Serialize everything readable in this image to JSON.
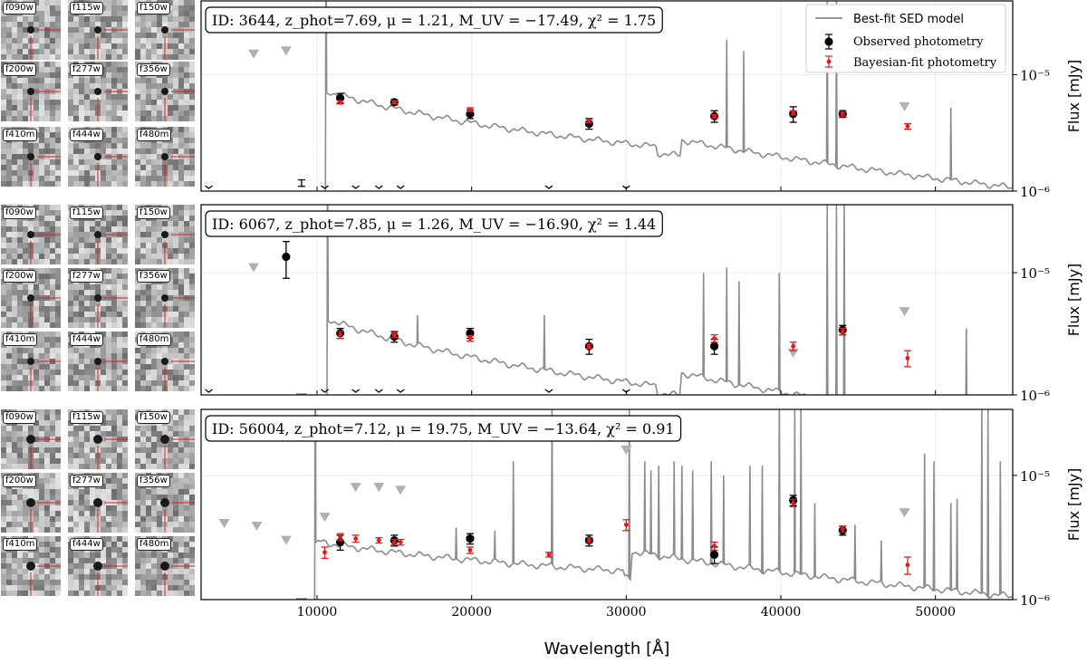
{
  "figure": {
    "xlabel": "Wavelength [Å]",
    "ylabel": "Flux [mJy]",
    "legend": {
      "placement": "top-right",
      "entries": [
        "Best-fit SED model",
        "Observed photometry",
        "Bayesian-fit photometry"
      ]
    },
    "filters": [
      "f090w",
      "f115w",
      "f150w",
      "f200w",
      "f277w",
      "f356w",
      "f410m",
      "f444w",
      "f480m"
    ],
    "colors": {
      "model": "#8c8c8c",
      "observed": "#000000",
      "bayesian": "#e41a1c",
      "upper_limit": "#b0b0b0"
    }
  },
  "chart_data": [
    {
      "type": "scatter",
      "title": "ID: 3644, z_phot=7.69, μ = 1.21, M_UV = −17.49, χ² = 1.75",
      "id": "3644",
      "z_phot": "7.69",
      "mu": "1.21",
      "M_UV": "−17.49",
      "chi2": "1.75",
      "xlabel": "",
      "ylabel": "Flux [mJy]",
      "xlim": [
        2500,
        55000
      ],
      "ylim": [
        1e-06,
        4.3e-05
      ],
      "yscale": "log",
      "xticks": [
        10000,
        20000,
        30000,
        40000,
        50000
      ],
      "yticks": [
        {
          "v": 1e-06,
          "label": "10⁻⁶"
        },
        {
          "v": 1e-05,
          "label": "10⁻⁵"
        }
      ],
      "break_wavelength": 10600,
      "continuum_level": 7e-06,
      "continuum_slope": -1.0,
      "red_rise": 1.2,
      "red_rise_start": 32000,
      "red_rise_end": 33500,
      "blue_spike": 4.5e-05,
      "emission_lines": [
        {
          "x": 36500,
          "y": 2e-05
        },
        {
          "x": 37600,
          "y": 1.6e-05
        },
        {
          "x": 43000,
          "y": 4.5e-05
        },
        {
          "x": 43600,
          "y": 4.5e-05
        },
        {
          "x": 51000,
          "y": 5.2e-06
        }
      ],
      "observed": [
        {
          "x": 11500,
          "y": 6.3e-06,
          "err": 6e-07
        },
        {
          "x": 15000,
          "y": 5.8e-06,
          "err": 3e-07
        },
        {
          "x": 19900,
          "y": 4.6e-06,
          "err": 4e-07
        },
        {
          "x": 27600,
          "y": 3.8e-06,
          "err": 4e-07
        },
        {
          "x": 35700,
          "y": 4.4e-06,
          "err": 5e-07
        },
        {
          "x": 40800,
          "y": 4.6e-06,
          "err": 7e-07
        },
        {
          "x": 44000,
          "y": 4.6e-06,
          "err": 3e-07
        }
      ],
      "bayesian": [
        {
          "x": 11500,
          "y": 5.8e-06,
          "err": 2e-07
        },
        {
          "x": 15000,
          "y": 5.8e-06,
          "err": 1.5e-07
        },
        {
          "x": 19900,
          "y": 5e-06,
          "err": 2e-07
        },
        {
          "x": 27600,
          "y": 4e-06,
          "err": 1.5e-07
        },
        {
          "x": 35700,
          "y": 4.4e-06,
          "err": 1.5e-07
        },
        {
          "x": 40800,
          "y": 4.7e-06,
          "err": 2e-07
        },
        {
          "x": 44000,
          "y": 4.6e-06,
          "err": 2e-07
        },
        {
          "x": 48200,
          "y": 3.6e-06,
          "err": 2e-07
        }
      ],
      "upper_limits": [
        {
          "x": 5900,
          "y": 1.5e-05
        },
        {
          "x": 8000,
          "y": 1.6e-05
        },
        {
          "x": 48000,
          "y": 5.3e-06
        }
      ],
      "nondetections": [
        3000,
        10500,
        12500,
        14000,
        15400,
        25000,
        30000
      ],
      "bottom_errorbars": [
        {
          "x": 9000,
          "y": 1.15e-06,
          "err": 1e-07
        }
      ]
    },
    {
      "type": "scatter",
      "title": "ID: 6067, z_phot=7.85, μ = 1.26, M_UV = −16.90, χ² = 1.44",
      "id": "6067",
      "z_phot": "7.85",
      "mu": "1.26",
      "M_UV": "−16.90",
      "chi2": "1.44",
      "xlabel": "",
      "ylabel": "Flux [mJy]",
      "xlim": [
        2500,
        55000
      ],
      "ylim": [
        1e-06,
        3.6e-05
      ],
      "yscale": "log",
      "xticks": [
        10000,
        20000,
        30000,
        40000,
        50000
      ],
      "yticks": [
        {
          "v": 1e-06,
          "label": "10⁻⁶"
        },
        {
          "v": 1e-05,
          "label": "10⁻⁵"
        }
      ],
      "break_wavelength": 10700,
      "continuum_level": 4e-06,
      "continuum_slope": -1.15,
      "red_rise": 1.35,
      "red_rise_start": 32000,
      "red_rise_end": 33500,
      "blue_spike": 3.6e-05,
      "emission_lines": [
        {
          "x": 16500,
          "y": 4.5e-06
        },
        {
          "x": 24700,
          "y": 4.5e-06
        },
        {
          "x": 35000,
          "y": 1e-05
        },
        {
          "x": 36500,
          "y": 1.1e-05
        },
        {
          "x": 37300,
          "y": 8.5e-06
        },
        {
          "x": 39900,
          "y": 1e-05
        },
        {
          "x": 43000,
          "y": 3.6e-05
        },
        {
          "x": 43600,
          "y": 3.6e-05
        },
        {
          "x": 44100,
          "y": 3.6e-05
        },
        {
          "x": 52000,
          "y": 3.5e-06
        }
      ],
      "observed": [
        {
          "x": 8000,
          "y": 1.35e-05,
          "err": 4.5e-06
        },
        {
          "x": 11500,
          "y": 3.2e-06,
          "err": 3e-07
        },
        {
          "x": 15000,
          "y": 3e-06,
          "err": 3e-07
        },
        {
          "x": 19900,
          "y": 3.2e-06,
          "err": 3e-07
        },
        {
          "x": 27600,
          "y": 2.5e-06,
          "err": 3.5e-07
        },
        {
          "x": 35700,
          "y": 2.5e-06,
          "err": 3.5e-07
        },
        {
          "x": 44000,
          "y": 3.4e-06,
          "err": 3e-07
        }
      ],
      "bayesian": [
        {
          "x": 11500,
          "y": 3.1e-06,
          "err": 2e-07
        },
        {
          "x": 15000,
          "y": 3.1e-06,
          "err": 1.5e-07
        },
        {
          "x": 19900,
          "y": 2.9e-06,
          "err": 1.5e-07
        },
        {
          "x": 27600,
          "y": 2.5e-06,
          "err": 1e-07
        },
        {
          "x": 35700,
          "y": 2.9e-06,
          "err": 2e-07
        },
        {
          "x": 40800,
          "y": 2.5e-06,
          "err": 2e-07
        },
        {
          "x": 44000,
          "y": 3.3e-06,
          "err": 2e-07
        },
        {
          "x": 48200,
          "y": 2e-06,
          "err": 3e-07
        }
      ],
      "upper_limits": [
        {
          "x": 5900,
          "y": 1.1e-05
        },
        {
          "x": 40800,
          "y": 2.2e-06
        },
        {
          "x": 48000,
          "y": 4.8e-06
        }
      ],
      "nondetections": [
        3000,
        10500,
        12500,
        14000,
        15400,
        25000,
        30000
      ],
      "bottom_errorbars": [
        {
          "x": 9000,
          "y": 1e-06,
          "err": 0.0
        }
      ]
    },
    {
      "type": "scatter",
      "title": "ID: 56004, z_phot=7.12, μ = 19.75, M_UV = −13.64, χ² = 0.91",
      "id": "56004",
      "z_phot": "7.12",
      "mu": "19.75",
      "M_UV": "−13.64",
      "chi2": "0.91",
      "xlabel": "Wavelength [Å]",
      "ylabel": "Flux [mJy]",
      "xlim": [
        2500,
        55000
      ],
      "ylim": [
        1e-06,
        3.4e-05
      ],
      "yscale": "log",
      "xticks": [
        10000,
        20000,
        30000,
        40000,
        50000
      ],
      "yticks": [
        {
          "v": 1e-06,
          "label": "10⁻⁶"
        },
        {
          "v": 1e-05,
          "label": "10⁻⁵"
        }
      ],
      "break_wavelength": 9900,
      "continuum_level": 2.9e-06,
      "continuum_slope": -0.5,
      "red_rise": 1.45,
      "red_rise_start": 29800,
      "red_rise_end": 30300,
      "blue_spike": 3.4e-05,
      "emission_lines": [
        {
          "x": 19000,
          "y": 3.8e-06
        },
        {
          "x": 21500,
          "y": 3.6e-06
        },
        {
          "x": 22700,
          "y": 1.3e-05
        },
        {
          "x": 25200,
          "y": 3.4e-05
        },
        {
          "x": 30200,
          "y": 3.4e-05
        },
        {
          "x": 31200,
          "y": 1.3e-05
        },
        {
          "x": 31600,
          "y": 1.1e-05
        },
        {
          "x": 32100,
          "y": 1.2e-05
        },
        {
          "x": 33100,
          "y": 1.3e-05
        },
        {
          "x": 33600,
          "y": 1.2e-05
        },
        {
          "x": 34300,
          "y": 1.1e-05
        },
        {
          "x": 35500,
          "y": 1.3e-05
        },
        {
          "x": 36300,
          "y": 1e-05
        },
        {
          "x": 38000,
          "y": 1.2e-05
        },
        {
          "x": 38800,
          "y": 1.2e-05
        },
        {
          "x": 39900,
          "y": 3.4e-05
        },
        {
          "x": 40900,
          "y": 3.4e-05
        },
        {
          "x": 41300,
          "y": 3.4e-05
        },
        {
          "x": 42200,
          "y": 6e-06
        },
        {
          "x": 44800,
          "y": 4e-06
        },
        {
          "x": 46500,
          "y": 3e-06
        },
        {
          "x": 49300,
          "y": 1.5e-05
        },
        {
          "x": 49900,
          "y": 1.3e-05
        },
        {
          "x": 51000,
          "y": 6e-06
        },
        {
          "x": 51400,
          "y": 6.5e-06
        },
        {
          "x": 53000,
          "y": 3.4e-05
        },
        {
          "x": 53400,
          "y": 3.4e-05
        },
        {
          "x": 54200,
          "y": 1.3e-05
        }
      ],
      "observed": [
        {
          "x": 11500,
          "y": 2.9e-06,
          "err": 4e-07
        },
        {
          "x": 15000,
          "y": 3e-06,
          "err": 3e-07
        },
        {
          "x": 19900,
          "y": 3.1e-06,
          "err": 3e-07
        },
        {
          "x": 27600,
          "y": 3e-06,
          "err": 3e-07
        },
        {
          "x": 35700,
          "y": 2.3e-06,
          "err": 3.5e-07
        },
        {
          "x": 40800,
          "y": 6.3e-06,
          "err": 6e-07
        },
        {
          "x": 44000,
          "y": 3.6e-06,
          "err": 3e-07
        }
      ],
      "bayesian": [
        {
          "x": 10500,
          "y": 2.4e-06,
          "err": 2.5e-07
        },
        {
          "x": 11500,
          "y": 3.2e-06,
          "err": 2e-07
        },
        {
          "x": 12500,
          "y": 3.1e-06,
          "err": 2e-07
        },
        {
          "x": 14000,
          "y": 3e-06,
          "err": 1.5e-07
        },
        {
          "x": 15000,
          "y": 2.9e-06,
          "err": 1.5e-07
        },
        {
          "x": 15400,
          "y": 2.9e-06,
          "err": 1.5e-07
        },
        {
          "x": 19900,
          "y": 2.5e-06,
          "err": 1.5e-07
        },
        {
          "x": 25000,
          "y": 2.3e-06,
          "err": 1e-07
        },
        {
          "x": 27600,
          "y": 3e-06,
          "err": 1.5e-07
        },
        {
          "x": 30000,
          "y": 4e-06,
          "err": 4e-07
        },
        {
          "x": 35700,
          "y": 2.7e-06,
          "err": 2e-07
        },
        {
          "x": 40800,
          "y": 6e-06,
          "err": 4e-07
        },
        {
          "x": 44000,
          "y": 3.7e-06,
          "err": 2e-07
        },
        {
          "x": 48200,
          "y": 1.9e-06,
          "err": 3e-07
        }
      ],
      "upper_limits": [
        {
          "x": 4000,
          "y": 4.1e-06
        },
        {
          "x": 6100,
          "y": 3.9e-06
        },
        {
          "x": 8000,
          "y": 3e-06
        },
        {
          "x": 10500,
          "y": 4.6e-06
        },
        {
          "x": 12500,
          "y": 8e-06
        },
        {
          "x": 14000,
          "y": 8e-06
        },
        {
          "x": 15400,
          "y": 7.6e-06
        },
        {
          "x": 25000,
          "y": 2.6e-05
        },
        {
          "x": 30000,
          "y": 1.6e-05
        },
        {
          "x": 48000,
          "y": 5e-06
        }
      ],
      "nondetections": [],
      "bottom_errorbars": [
        {
          "x": 9000,
          "y": 1e-06,
          "err": 0.0
        }
      ]
    }
  ]
}
